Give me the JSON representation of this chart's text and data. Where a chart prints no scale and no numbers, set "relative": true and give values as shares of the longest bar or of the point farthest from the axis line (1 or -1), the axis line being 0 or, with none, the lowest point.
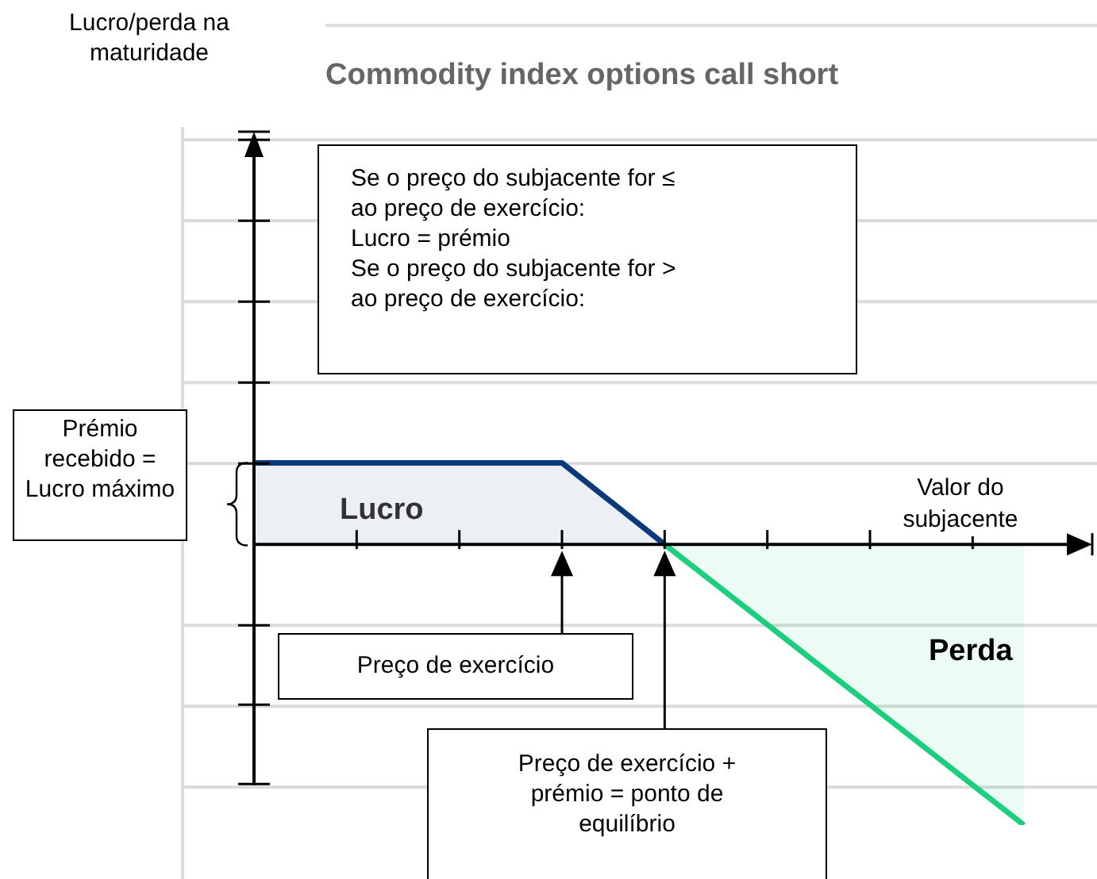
{
  "chart_data": {
    "type": "area",
    "title": "Commodity index options call short",
    "xlabel": "Valor do subjacente",
    "relative": true,
    "grid": "y",
    "categories": [
      null,
      null,
      null,
      null,
      null,
      null,
      null,
      null,
      null,
      null,
      null,
      null,
      null,
      null,
      null,
      null
    ],
    "series": [
      {
        "color": "#0b3a7a",
        "values": [
          0.29,
          0.29,
          0.29,
          0.29,
          0.29,
          0.29,
          0.29,
          0.145,
          0,
          null,
          null,
          null,
          null,
          null,
          null,
          null
        ]
      },
      {
        "color": "#1ccf7f",
        "values": [
          null,
          null,
          null,
          null,
          null,
          null,
          null,
          null,
          0,
          -0.143,
          -0.286,
          -0.429,
          -0.571,
          -0.714,
          -0.857,
          -1
        ]
      }
    ],
    "annotations": [
      "Se o preço do subjacente for ≤ ao preço de exercício:\nLucro = prémio\nSe o preço do subjacente for > ao preço de exercício:",
      "Prémio recebido = Lucro máximo",
      "Lucro",
      "Perda",
      "Preço de exercício",
      "Preço de exercício + prémio = ponto de equilíbrio",
      "Lucro/perda na maturidade"
    ]
  }
}
